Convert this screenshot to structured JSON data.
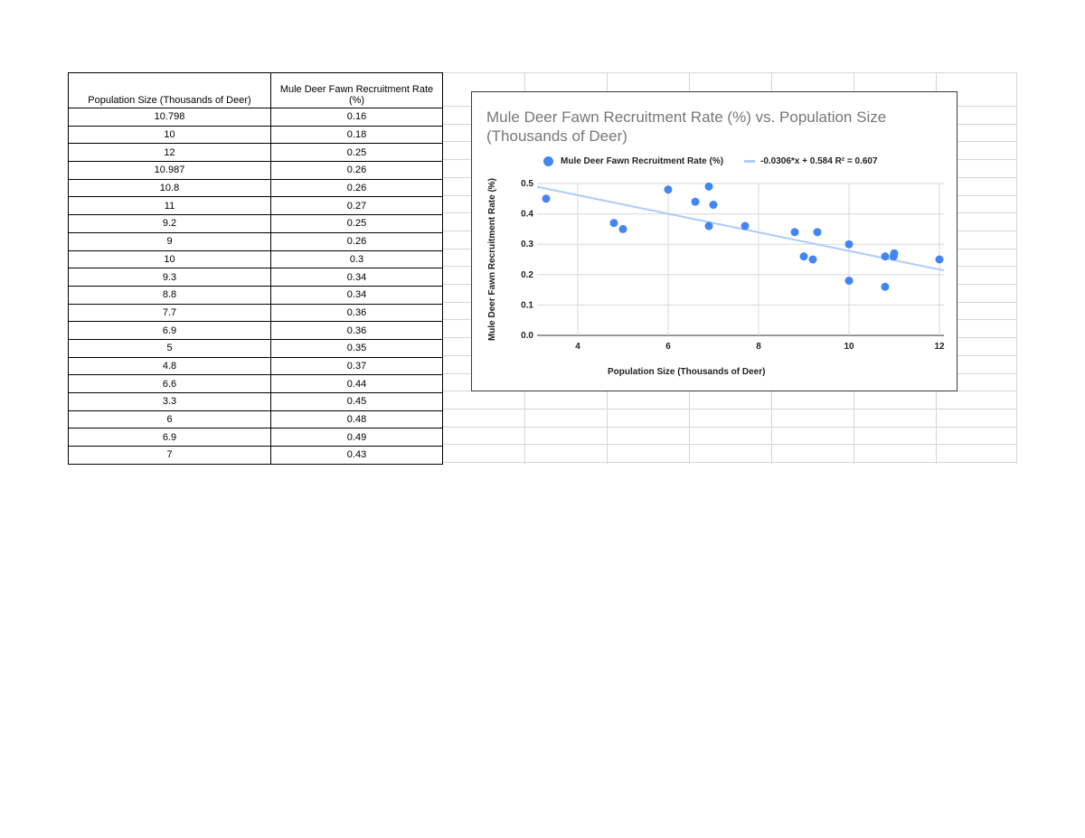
{
  "table": {
    "headers": [
      "Population Size (Thousands of Deer)",
      "Mule Deer Fawn Recruitment Rate (%)"
    ],
    "rows": [
      [
        "10.798",
        "0.16"
      ],
      [
        "10",
        "0.18"
      ],
      [
        "12",
        "0.25"
      ],
      [
        "10.987",
        "0.26"
      ],
      [
        "10.8",
        "0.26"
      ],
      [
        "11",
        "0.27"
      ],
      [
        "9.2",
        "0.25"
      ],
      [
        "9",
        "0.26"
      ],
      [
        "10",
        "0.3"
      ],
      [
        "9.3",
        "0.34"
      ],
      [
        "8.8",
        "0.34"
      ],
      [
        "7.7",
        "0.36"
      ],
      [
        "6.9",
        "0.36"
      ],
      [
        "5",
        "0.35"
      ],
      [
        "4.8",
        "0.37"
      ],
      [
        "6.6",
        "0.44"
      ],
      [
        "3.3",
        "0.45"
      ],
      [
        "6",
        "0.48"
      ],
      [
        "6.9",
        "0.49"
      ],
      [
        "7",
        "0.43"
      ]
    ]
  },
  "chart_data": {
    "type": "scatter",
    "title": "Mule Deer Fawn Recruitment Rate (%) vs. Population Size (Thousands of Deer)",
    "xlabel": "Population Size (Thousands of Deer)",
    "ylabel": "Mule Deer Fawn Recruitment Rate (%)",
    "xlim": [
      3.1,
      12.1
    ],
    "ylim": [
      0,
      0.5
    ],
    "x_ticks": [
      4,
      6,
      8,
      10,
      12
    ],
    "y_ticks": [
      0.0,
      0.1,
      0.2,
      0.3,
      0.4,
      0.5
    ],
    "x_tick_labels": [
      "4",
      "6",
      "8",
      "10",
      "12"
    ],
    "y_tick_labels": [
      "0.0",
      "0.1",
      "0.2",
      "0.3",
      "0.4",
      "0.5"
    ],
    "grid": true,
    "legend_position": "top",
    "series": [
      {
        "name": "Mule Deer Fawn Recruitment Rate (%)",
        "color": "#4285f4",
        "x": [
          10.798,
          10,
          12,
          10.987,
          10.8,
          11,
          9.2,
          9,
          10,
          9.3,
          8.8,
          7.7,
          6.9,
          5,
          4.8,
          6.6,
          3.3,
          6,
          6.9,
          7
        ],
        "y": [
          0.16,
          0.18,
          0.25,
          0.26,
          0.26,
          0.27,
          0.25,
          0.26,
          0.3,
          0.34,
          0.34,
          0.36,
          0.36,
          0.35,
          0.37,
          0.44,
          0.45,
          0.48,
          0.49,
          0.43
        ]
      }
    ],
    "trendline": {
      "label": "-0.0306*x + 0.584 R² = 0.607",
      "slope": -0.0306,
      "intercept": 0.584,
      "color": "#aecbfa"
    }
  }
}
